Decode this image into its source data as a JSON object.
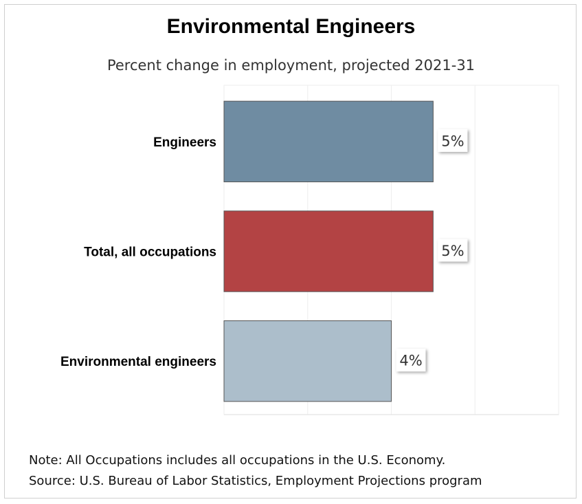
{
  "chart_data": {
    "type": "bar",
    "orientation": "horizontal",
    "title": "Environmental Engineers",
    "subtitle": "Percent change in employment, projected 2021-31",
    "categories": [
      "Engineers",
      "Total, all occupations",
      "Environmental engineers"
    ],
    "values": [
      5,
      5,
      4
    ],
    "value_labels": [
      "5%",
      "5%",
      "4%"
    ],
    "colors": [
      "#6f8ca2",
      "#b34344",
      "#acbecb"
    ],
    "xlim": [
      0,
      8
    ],
    "grid": true,
    "legend": "none"
  },
  "notes": {
    "note": "Note: All Occupations includes all occupations in the U.S. Economy.",
    "source": "Source: U.S. Bureau of Labor Statistics, Employment Projections program"
  }
}
